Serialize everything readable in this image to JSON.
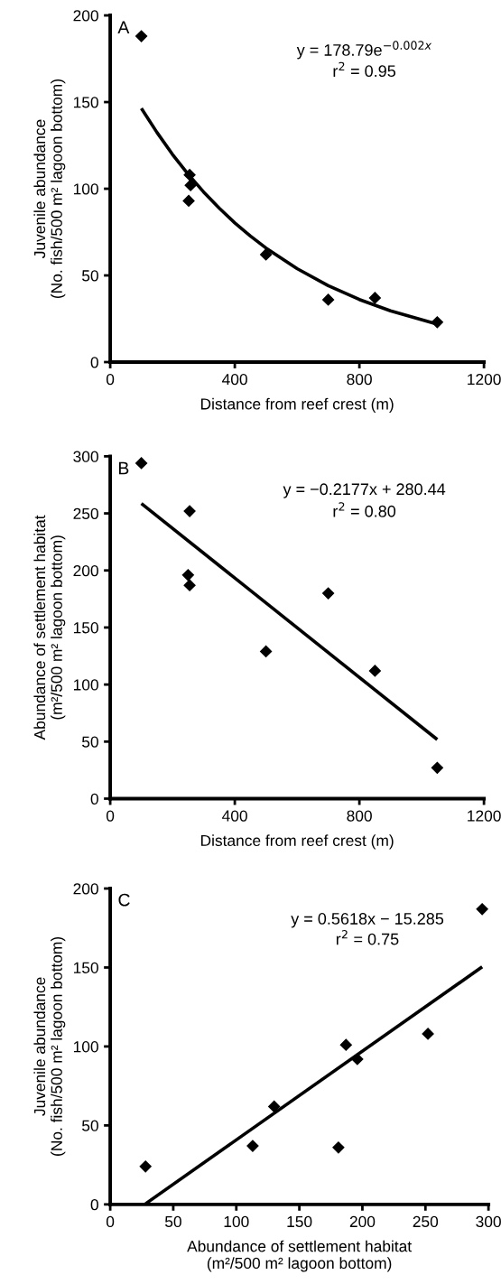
{
  "chart_data": [
    {
      "type": "scatter",
      "xlabel": "Distance from reef crest (m)",
      "ylabel": "Juvenile abundance\n(No. fish/500 m² lagoon bottom)",
      "xlim": [
        0,
        1200
      ],
      "xticks": [
        0,
        400,
        800,
        1200
      ],
      "ylim": [
        0,
        200
      ],
      "yticks": [
        0,
        50,
        100,
        150,
        200
      ],
      "grid": false,
      "legend": false,
      "annotations": [
        "A",
        "y = 178.79e$^{−0.002x}$",
        "r$^{2}$ = 0.95"
      ],
      "series": [
        {
          "marker": "diamond",
          "color": "#000000",
          "x": [
            100,
            255,
            258,
            252,
            500,
            700,
            850,
            1050
          ],
          "values": [
            188,
            108,
            102,
            93,
            62,
            36,
            37,
            23
          ]
        },
        {
          "type": "line",
          "marker": "none",
          "color": "#000000",
          "x": [
            100,
            150,
            200,
            250,
            300,
            350,
            400,
            450,
            500,
            600,
            700,
            800,
            900,
            1050
          ],
          "values": [
            146.4,
            132.5,
            119.8,
            108.4,
            98.1,
            88.8,
            80.3,
            72.7,
            65.8,
            53.9,
            44.1,
            36.1,
            29.6,
            21.9
          ]
        }
      ]
    },
    {
      "type": "scatter",
      "xlabel": "Distance from reef crest (m)",
      "ylabel": "Abundance of settlement habitat\n(m²/500 m² lagoon bottom)",
      "xlim": [
        0,
        1200
      ],
      "xticks": [
        0,
        400,
        800,
        1200
      ],
      "ylim": [
        0,
        300
      ],
      "yticks": [
        0,
        50,
        100,
        150,
        200,
        250,
        300
      ],
      "grid": false,
      "legend": false,
      "annotations": [
        "B",
        "y = −0.2177x + 280.44",
        "r$^{2}$ = 0.80"
      ],
      "series": [
        {
          "marker": "diamond",
          "color": "#000000",
          "x": [
            100,
            255,
            250,
            255,
            500,
            700,
            850,
            1050
          ],
          "values": [
            294,
            252,
            196,
            187,
            129,
            180,
            112,
            27
          ]
        },
        {
          "type": "line",
          "marker": "none",
          "color": "#000000",
          "x": [
            100,
            1050
          ],
          "values": [
            258.7,
            51.8
          ]
        }
      ]
    },
    {
      "type": "scatter",
      "xlabel": "Abundance of settlement habitat\n(m²/500 m² lagoon bottom)",
      "ylabel": "Juvenile abundance\n(No. fish/500 m² lagoon bottom)",
      "xlim": [
        0,
        300
      ],
      "xticks": [
        0,
        50,
        100,
        150,
        200,
        250,
        300
      ],
      "ylim": [
        0,
        200
      ],
      "yticks": [
        0,
        50,
        100,
        150,
        200
      ],
      "grid": false,
      "legend": false,
      "annotations": [
        "C",
        "y = 0.5618x − 15.285",
        "r$^{2}$ = 0.75"
      ],
      "series": [
        {
          "marker": "diamond",
          "color": "#000000",
          "x": [
            28,
            113,
            130,
            181,
            187,
            196,
            252,
            295
          ],
          "values": [
            24,
            37,
            62,
            36,
            101,
            92,
            108,
            187
          ]
        },
        {
          "type": "line",
          "marker": "none",
          "color": "#000000",
          "x": [
            28,
            295
          ],
          "values": [
            0.4,
            150.4
          ]
        }
      ]
    }
  ]
}
